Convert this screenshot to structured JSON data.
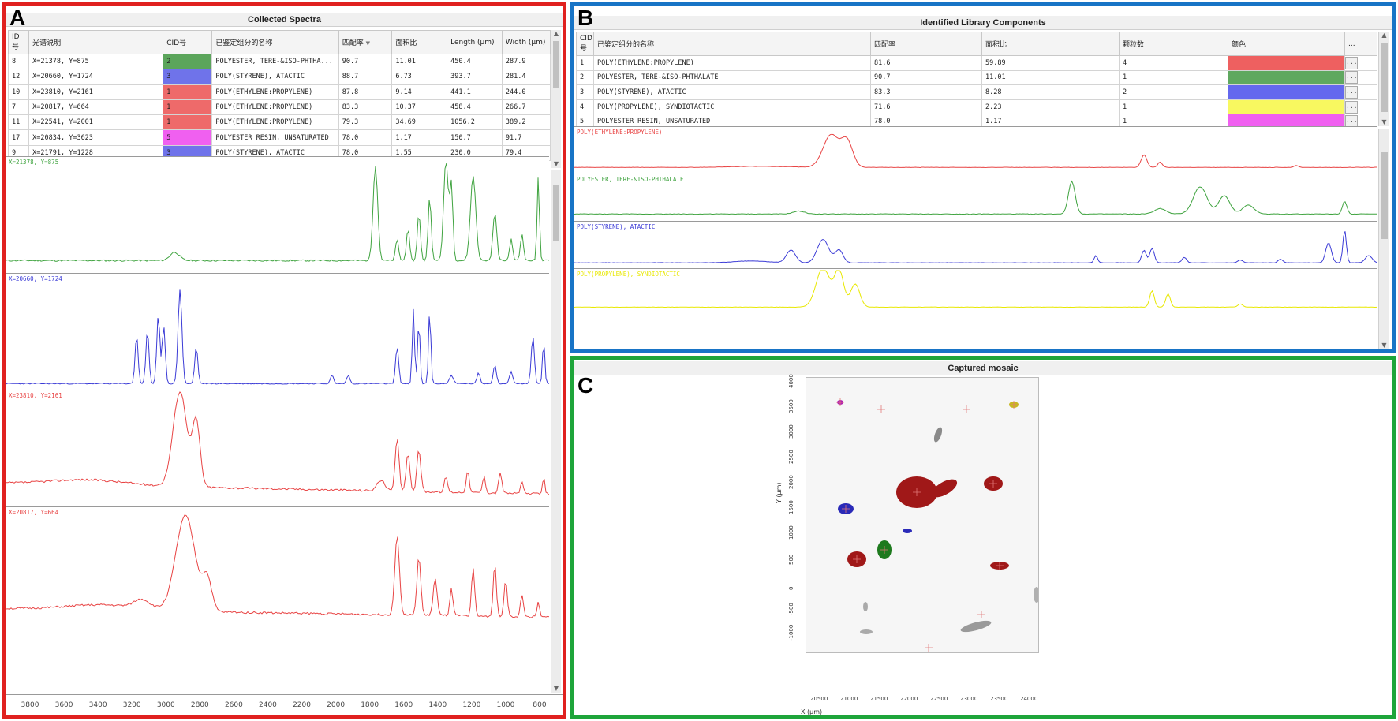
{
  "panelA": {
    "letter": "A",
    "title": "Collected Spectra",
    "columns": [
      "ID号",
      "光谱说明",
      "CID号",
      "已鉴定组分的名称",
      "匹配率",
      "面积比",
      "Length (μm)",
      "Width (μm)"
    ],
    "rows": [
      {
        "id": "8",
        "desc": "X=21378, Y=875",
        "cid": "2",
        "cidColor": "#5ba55b",
        "name": "POLYESTER, TERE-&ISO-PHTHA...",
        "match": "90.7",
        "area": "11.01",
        "length": "450.4",
        "width": "287.9"
      },
      {
        "id": "12",
        "desc": "X=20660, Y=1724",
        "cid": "3",
        "cidColor": "#6f73ea",
        "name": "POLY(STYRENE), ATACTIC",
        "match": "88.7",
        "area": "6.73",
        "length": "393.7",
        "width": "281.4"
      },
      {
        "id": "10",
        "desc": "X=23810, Y=2161",
        "cid": "1",
        "cidColor": "#ee6a6a",
        "name": "POLY(ETHYLENE:PROPYLENE)",
        "match": "87.8",
        "area": "9.14",
        "length": "441.1",
        "width": "244.0"
      },
      {
        "id": "7",
        "desc": "X=20817, Y=664",
        "cid": "1",
        "cidColor": "#ee6a6a",
        "name": "POLY(ETHYLENE:PROPYLENE)",
        "match": "83.3",
        "area": "10.37",
        "length": "458.4",
        "width": "266.7"
      },
      {
        "id": "11",
        "desc": "X=22541, Y=2001",
        "cid": "1",
        "cidColor": "#ee6a6a",
        "name": "POLY(ETHYLENE:PROPYLENE)",
        "match": "79.3",
        "area": "34.69",
        "length": "1056.2",
        "width": "389.2"
      },
      {
        "id": "17",
        "desc": "X=20834, Y=3623",
        "cid": "5",
        "cidColor": "#f060f0",
        "name": "POLYESTER RESIN, UNSATURATED",
        "match": "78.0",
        "area": "1.17",
        "length": "150.7",
        "width": "91.7"
      },
      {
        "id": "9",
        "desc": "X=21791, Y=1228",
        "cid": "3",
        "cidColor": "#6f73ea",
        "name": "POLY(STYRENE), ATACTIC",
        "match": "78.0",
        "area": "1.55",
        "length": "230.0",
        "width": "79.4"
      }
    ],
    "spectra": [
      {
        "label": "X=21378, Y=875",
        "color": "#3fa33f"
      },
      {
        "label": "X=20660, Y=1724",
        "color": "#3b3bd6"
      },
      {
        "label": "X=23810, Y=2161",
        "color": "#e84444"
      },
      {
        "label": "X=20817, Y=664",
        "color": "#e84444"
      }
    ],
    "xticks": [
      "3800",
      "3600",
      "3400",
      "3200",
      "3000",
      "2800",
      "2600",
      "2400",
      "2200",
      "2000",
      "1800",
      "1600",
      "1400",
      "1200",
      "1000",
      "800"
    ]
  },
  "panelB": {
    "letter": "B",
    "title": "Identified Library Components",
    "columns": [
      "CID号",
      "已鉴定组分的名称",
      "匹配率",
      "面积比",
      "颗粒数",
      "颜色",
      "..."
    ],
    "rows": [
      {
        "cid": "1",
        "name": "POLY(ETHYLENE:PROPYLENE)",
        "match": "81.6",
        "area": "59.89",
        "count": "4",
        "color": "#ee6060"
      },
      {
        "cid": "2",
        "name": "POLYESTER, TERE-&ISO-PHTHALATE",
        "match": "90.7",
        "area": "11.01",
        "count": "1",
        "color": "#5fa85f"
      },
      {
        "cid": "3",
        "name": "POLY(STYRENE), ATACTIC",
        "match": "83.3",
        "area": "8.28",
        "count": "2",
        "color": "#6468ee"
      },
      {
        "cid": "4",
        "name": "POLY(PROPYLENE), SYNDIOTACTIC",
        "match": "71.6",
        "area": "2.23",
        "count": "1",
        "color": "#f8f860"
      },
      {
        "cid": "5",
        "name": "POLYESTER RESIN, UNSATURATED",
        "match": "78.0",
        "area": "1.17",
        "count": "1",
        "color": "#f060f0"
      }
    ],
    "ellipsis": "...",
    "spectra": [
      {
        "label": "POLY(ETHYLENE:PROPYLENE)",
        "color": "#e84444"
      },
      {
        "label": "POLYESTER, TERE-&ISO-PHTHALATE",
        "color": "#3fa33f"
      },
      {
        "label": "POLY(STYRENE), ATACTIC",
        "color": "#3b3bd6"
      },
      {
        "label": "POLY(PROPYLENE), SYNDIOTACTIC",
        "color": "#e8e800"
      }
    ]
  },
  "panelC": {
    "letter": "C",
    "title": "Captured mosaic",
    "ylabel": "Y (μm)",
    "xlabel": "X (μm)",
    "yticks": [
      "4000",
      "3500",
      "3000",
      "2500",
      "2000",
      "1500",
      "1000",
      "500",
      "0",
      "-500",
      "-1000"
    ],
    "xticks": [
      "20500",
      "21000",
      "21500",
      "22000",
      "22500",
      "23000",
      "23500",
      "24000"
    ]
  }
}
